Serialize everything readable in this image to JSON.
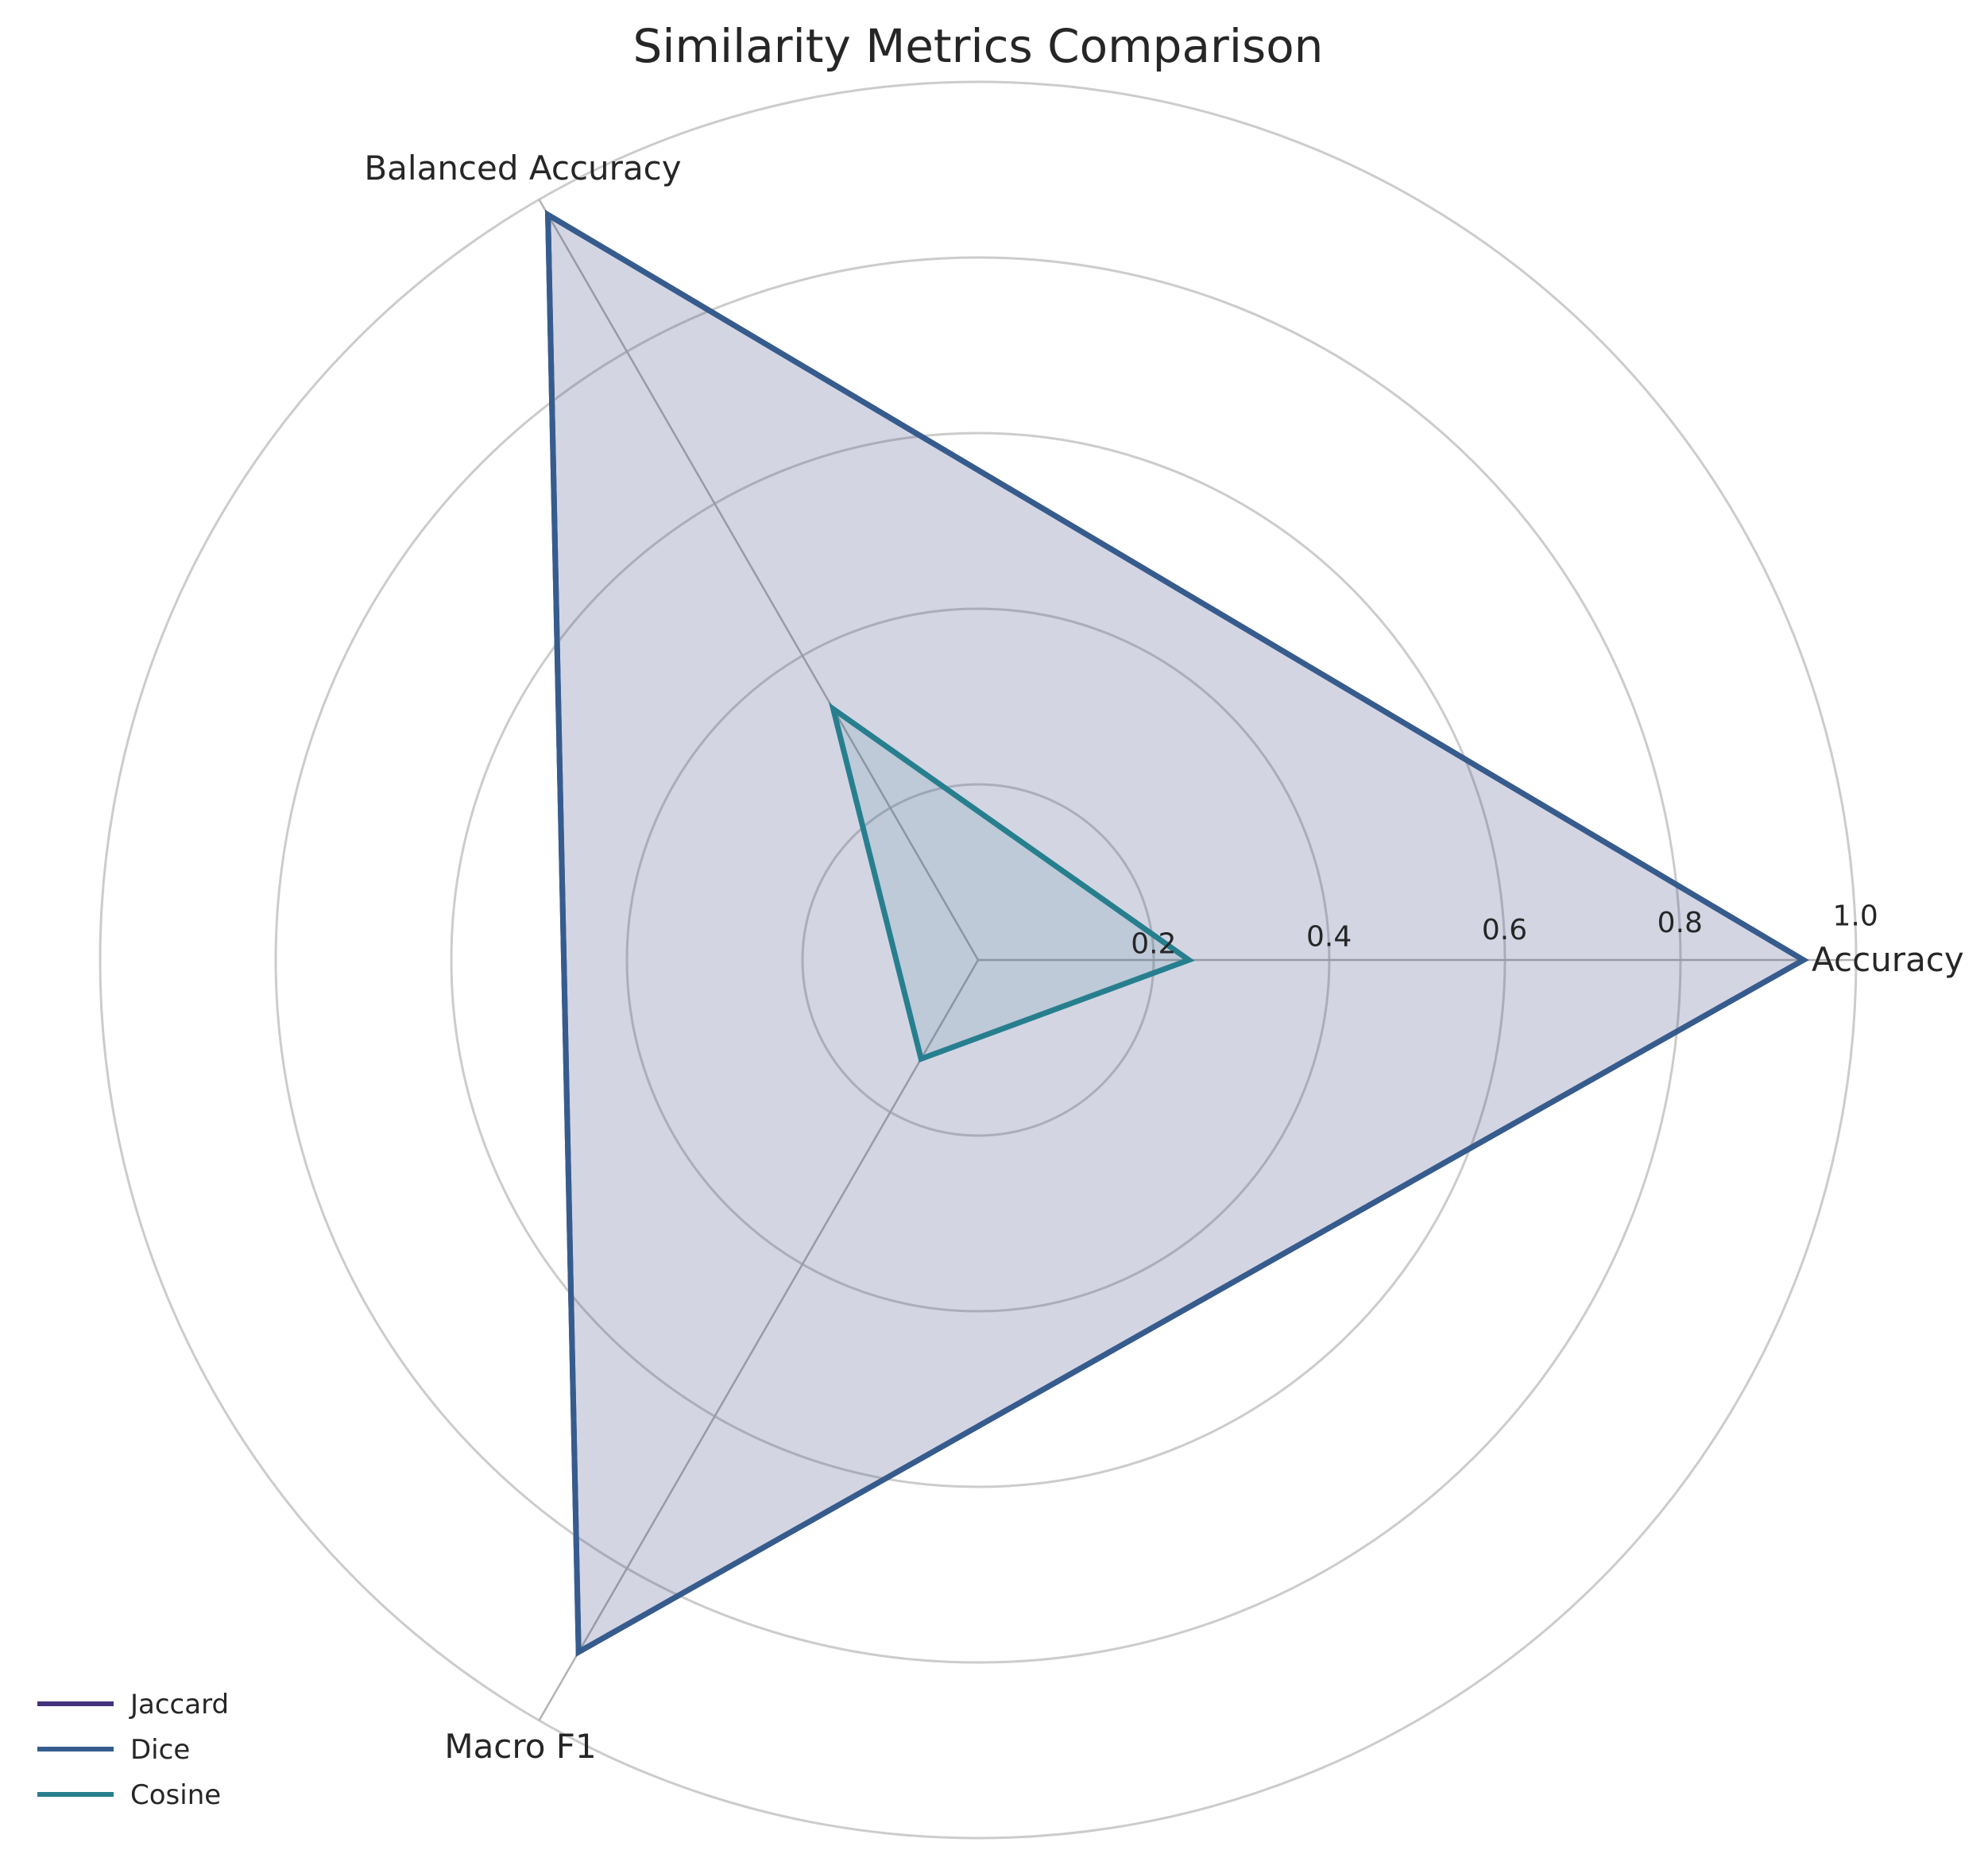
{
  "chart_data": {
    "type": "radar",
    "title": "Similarity Metrics Comparison",
    "axes": [
      "Accuracy",
      "Balanced Accuracy",
      "Macro F1"
    ],
    "rlim": [
      0,
      1.0
    ],
    "rticks": [
      "0.2",
      "0.4",
      "0.6",
      "0.8",
      "1.0"
    ],
    "grid": true,
    "legend_position": "lower-left",
    "series": [
      {
        "name": "Jaccard",
        "color": "#46337e",
        "values": [
          0.94,
          0.98,
          0.91
        ]
      },
      {
        "name": "Dice",
        "color": "#365c8d",
        "values": [
          0.94,
          0.98,
          0.91
        ]
      },
      {
        "name": "Cosine",
        "color": "#277f8e",
        "values": [
          0.24,
          0.33,
          0.13
        ]
      }
    ]
  }
}
